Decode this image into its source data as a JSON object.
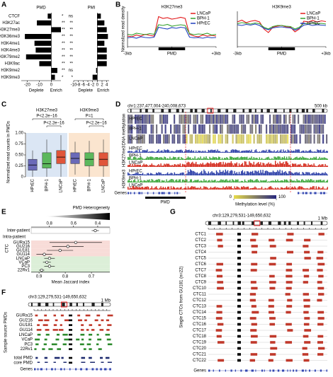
{
  "panel_labels": [
    "A",
    "B",
    "C",
    "D",
    "E",
    "F",
    "G"
  ],
  "chart_data": [
    {
      "type": "bar",
      "title": "PMD",
      "categories": [
        "CTCF",
        "H3K27ac",
        "H3K27me3",
        "H3K36me3",
        "H3K4me1",
        "H3K4me3",
        "H3K79me2",
        "H3K9ac",
        "H3K9me2",
        "H3K9me3"
      ],
      "values": [
        -3,
        -12,
        8,
        -22,
        -14,
        -13,
        -21,
        -10,
        5,
        3
      ],
      "significance": [
        "*",
        "**",
        "**",
        "**",
        "**",
        "**",
        "**",
        "**",
        "**",
        "*"
      ],
      "color": "#000000",
      "xlim": [
        -25,
        8
      ],
      "xticks": [
        -20,
        -10,
        0
      ],
      "xlabel_left": "Deplete",
      "xlabel_right": "Enrich"
    },
    {
      "type": "bar",
      "title": "PMI",
      "values": [
        1.5,
        3,
        4,
        4.5,
        3,
        4,
        4,
        4,
        -0.5,
        -2
      ],
      "significance": [
        "ns",
        "**",
        "**",
        "**",
        "**",
        "**",
        "**",
        "**",
        "ns",
        "*"
      ],
      "color": "#000000",
      "xlim": [
        -10,
        5
      ],
      "xticks": [
        -10,
        -8,
        -6,
        -4,
        -2,
        0,
        2,
        4
      ],
      "xlabel_left": "Deplete",
      "xlabel_right": "Enrich"
    },
    {
      "type": "line",
      "title": "H3K27me3",
      "ylabel": "Normalized read density",
      "x": [
        0,
        1,
        2,
        3,
        4,
        5,
        6,
        7,
        8,
        9,
        10,
        11,
        12,
        13,
        14,
        15,
        16,
        17,
        18,
        19,
        20
      ],
      "xlim": [
        0,
        20
      ],
      "ylim": [
        0,
        1
      ],
      "xticks": [
        {
          "value": 0,
          "label": "-3kb"
        },
        {
          "value": 10,
          "label": "PMD"
        },
        {
          "value": 20,
          "label": "+3kb"
        }
      ],
      "legend": "upper right",
      "series": [
        {
          "name": "LNCaP",
          "color": "#e31a1c",
          "values": [
            0.3,
            0.28,
            0.33,
            0.3,
            0.35,
            0.32,
            0.3,
            0.85,
            0.8,
            0.82,
            0.78,
            0.8,
            0.83,
            0.8,
            0.35,
            0.3,
            0.28,
            0.33,
            0.3,
            0.32,
            0.3
          ]
        },
        {
          "name": "BPH-1",
          "color": "#33a02c",
          "values": [
            0.35,
            0.33,
            0.38,
            0.36,
            0.34,
            0.37,
            0.35,
            0.62,
            0.6,
            0.63,
            0.58,
            0.6,
            0.62,
            0.6,
            0.37,
            0.34,
            0.36,
            0.35,
            0.38,
            0.33,
            0.35
          ]
        },
        {
          "name": "HPrEC",
          "color": "#1f3fbf",
          "values": [
            0.25,
            0.27,
            0.24,
            0.28,
            0.26,
            0.25,
            0.27,
            0.55,
            0.52,
            0.5,
            0.54,
            0.52,
            0.55,
            0.53,
            0.27,
            0.25,
            0.26,
            0.24,
            0.27,
            0.25,
            0.26
          ]
        }
      ]
    },
    {
      "type": "line",
      "title": "H3K9me3",
      "x": [
        0,
        1,
        2,
        3,
        4,
        5,
        6,
        7,
        8,
        9,
        10,
        11,
        12,
        13,
        14,
        15,
        16,
        17,
        18,
        19,
        20
      ],
      "xlim": [
        0,
        20
      ],
      "ylim": [
        0,
        1
      ],
      "xticks": [
        {
          "value": 0,
          "label": "-3kb"
        },
        {
          "value": 10,
          "label": "PMD"
        },
        {
          "value": 20,
          "label": "+3kb"
        }
      ],
      "legend": "upper right",
      "series": [
        {
          "name": "LNCaP",
          "color": "#e31a1c",
          "values": [
            0.7,
            0.75,
            0.68,
            0.72,
            0.74,
            0.7,
            0.5,
            0.4,
            0.55,
            0.58,
            0.6,
            0.56,
            0.55,
            0.42,
            0.5,
            0.72,
            0.7,
            0.74,
            0.7,
            0.73,
            0.71
          ]
        },
        {
          "name": "BPH-1",
          "color": "#33a02c",
          "values": [
            0.65,
            0.68,
            0.66,
            0.64,
            0.67,
            0.65,
            0.55,
            0.5,
            0.57,
            0.6,
            0.6,
            0.58,
            0.57,
            0.5,
            0.55,
            0.66,
            0.64,
            0.67,
            0.65,
            0.66,
            0.64
          ]
        },
        {
          "name": "HPrEC",
          "color": "#1f3fbf",
          "values": [
            0.62,
            0.6,
            0.63,
            0.61,
            0.64,
            0.6,
            0.52,
            0.48,
            0.53,
            0.55,
            0.56,
            0.54,
            0.53,
            0.47,
            0.52,
            0.61,
            0.63,
            0.6,
            0.62,
            0.61,
            0.6
          ]
        }
      ]
    },
    {
      "type": "box",
      "ylabel": "Normalized read counts in PMDs",
      "ylim": [
        0,
        1
      ],
      "yticks": [
        0,
        {
          "value": 0.25,
          "label": "0.25"
        },
        {
          "value": 0.5,
          "label": "0.50"
        },
        0.75,
        {
          "value": 1,
          "label": "1.00"
        }
      ],
      "groups": [
        {
          "title": "H3K27me3",
          "background": "#dbe6f4",
          "annotations": [
            "P<2.2e−16",
            "P<2.2e−16"
          ],
          "categories": [
            "HPrEC",
            "BPH-1",
            "LNCaP"
          ],
          "colors": [
            "#6a6ab8",
            "#5cb85c",
            "#e0553a"
          ],
          "boxes": [
            [
              0,
              0.15,
              0.27,
              0.4,
              0.6
            ],
            [
              0,
              0.2,
              0.3,
              0.55,
              0.85
            ],
            [
              0,
              0.3,
              0.45,
              0.6,
              0.95
            ]
          ]
        },
        {
          "title": "H3K9me3",
          "background": "#fbe5cf",
          "annotations": [
            "P=1",
            "P<2.2e−16"
          ],
          "categories": [
            "HPrEC",
            "BPH-1",
            "LNCaP"
          ],
          "colors": [
            "#6a6ab8",
            "#5cb85c",
            "#e0553a"
          ],
          "boxes": [
            [
              0.05,
              0.3,
              0.42,
              0.55,
              0.8
            ],
            [
              0,
              0.25,
              0.4,
              0.55,
              0.82
            ],
            [
              0,
              0.25,
              0.4,
              0.55,
              0.85
            ]
          ]
        }
      ]
    },
    {
      "type": "dot",
      "title": "PMD Heterogeneity",
      "categories": [
        "Inter-patient"
      ],
      "values": [
        0.42
      ],
      "errors": [
        0.03
      ],
      "color": "#000000",
      "xlim": [
        0.95,
        0.3
      ],
      "xticks": [
        0.8,
        0.6,
        0.4
      ]
    },
    {
      "type": "dot",
      "title": "Intra-patient",
      "xlabel": "Mean Jaccard index",
      "group_label": "CTC",
      "categories": [
        "GURa15",
        "GU216",
        "GU181",
        "GU114",
        "LNCaP",
        "VCaP",
        "PC3",
        "22Rv1"
      ],
      "values": [
        0.76,
        0.79,
        0.82,
        0.88,
        0.86,
        0.87,
        0.86,
        0.89
      ],
      "errors": [
        0.1,
        0.06,
        0.05,
        0.03,
        0.02,
        0.015,
        0.02,
        0.01
      ],
      "colors": [
        "#c0392b",
        "#c0392b",
        "#c0392b",
        "#c0392b",
        "#2e8b2e",
        "#2e8b2e",
        "#2e8b2e",
        "#2e8b2e"
      ],
      "backgrounds": [
        "#f8dcd8",
        "#f8dcd8",
        "#f8dcd8",
        "#f8dcd8",
        "#dcefd8",
        "#dcefd8",
        "#dcefd8",
        "#dcefd8"
      ],
      "xlim": [
        0.93,
        0.63
      ],
      "xticks": [
        0.9,
        0.8,
        0.7
      ]
    }
  ],
  "browser_d": {
    "title": "chr1:237,477,004-240,008,673",
    "scale": "500 kb",
    "methylation_label": "DNA methylation",
    "h3k27me3_label": "H3K27me3",
    "h3k9me3_label": "H3K9me3",
    "samples": [
      {
        "name": "HPrEC",
        "color": "#2b3fa8"
      },
      {
        "name": "BPH-1",
        "color": "#3aa63a"
      },
      {
        "name": "LNCaP",
        "color": "#d42a1c"
      }
    ],
    "genes_label": "Genes",
    "pmd_label": "PMD",
    "colorbar": {
      "label": "Methylation level (%)",
      "ticks": [
        0,
        100
      ],
      "low_color": "#e8dc4a",
      "high_color": "#26267e"
    }
  },
  "browser_f": {
    "title": "chr3:129,279,531-149,650,632",
    "scale": "1 Mb",
    "side_label": "Sample source PMDs",
    "rows": [
      {
        "name": "GURa15",
        "color": "#c0392b"
      },
      {
        "name": "GU216",
        "color": "#c0392b"
      },
      {
        "name": "GU181",
        "color": "#c0392b"
      },
      {
        "name": "GU114",
        "color": "#c0392b"
      },
      {
        "name": "LNCaP",
        "color": "#2e8b2e"
      },
      {
        "name": "VCaP",
        "color": "#2e8b2e"
      },
      {
        "name": "PC3",
        "color": "#2e8b2e"
      },
      {
        "name": "22Rv1",
        "color": "#2e8b2e"
      },
      {
        "name": "total PMD",
        "color": "#1c2a6e"
      },
      {
        "name": "core PMD",
        "color": "#1c2a6e"
      }
    ],
    "genes_label": "Genes"
  },
  "browser_g": {
    "title": "chr3:129,279,531-149,650,632",
    "scale": "1 Mb",
    "side_label": "Single CTCs from GU181 (n=22)",
    "rows": [
      "CTC1",
      "CTC2",
      "CTC3",
      "CTC4",
      "CTC5",
      "CTC6",
      "CTC7",
      "CTC8",
      "CTC9",
      "CTC10",
      "CTC11",
      "CTC12",
      "CTC13",
      "CTC14",
      "CTC15",
      "CTC16",
      "CTC17",
      "CTC18",
      "CTC19",
      "CTC20",
      "CTC21",
      "CTC22"
    ],
    "color": "#c0392b",
    "genes_label": "Genes"
  }
}
